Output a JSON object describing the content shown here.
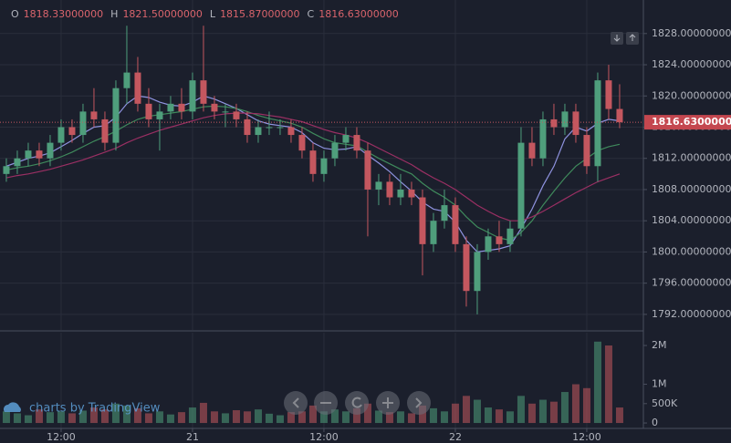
{
  "chart_data": {
    "type": "candlestick",
    "legend_header": [
      {
        "label": "O",
        "value": "1818.33000000"
      },
      {
        "label": "H",
        "value": "1821.50000000"
      },
      {
        "label": "L",
        "value": "1815.87000000"
      },
      {
        "label": "C",
        "value": "1816.63000000"
      }
    ],
    "last_price_label": "1816.63000000",
    "watermark": "charts by TradingView",
    "x": [
      7,
      8,
      9,
      10,
      11,
      12,
      13,
      14,
      15,
      16,
      17,
      18,
      19,
      20,
      21,
      22,
      23,
      24,
      25,
      26,
      27,
      28,
      29,
      30,
      31,
      32,
      33,
      34,
      35,
      36,
      37,
      38,
      39,
      40,
      41,
      42,
      43,
      44,
      45,
      46,
      47,
      48,
      49,
      50,
      51,
      52,
      53,
      54,
      55,
      56,
      57,
      58,
      59,
      60,
      61,
      62,
      63
    ],
    "open": [
      1810,
      1811,
      1812,
      1813,
      1812,
      1814,
      1816,
      1815,
      1818,
      1817,
      1814,
      1821,
      1823,
      1819,
      1817,
      1818,
      1819,
      1818,
      1822,
      1819,
      1818,
      1818,
      1817,
      1815,
      1816,
      1816,
      1816,
      1815,
      1813,
      1810,
      1812,
      1814,
      1815,
      1813,
      1808,
      1809,
      1807,
      1808,
      1807,
      1801,
      1804,
      1806,
      1801,
      1795,
      1800,
      1802,
      1801,
      1803,
      1814,
      1812,
      1817,
      1816,
      1818,
      1815,
      1811,
      1822,
      1818.33
    ],
    "high": [
      1812,
      1813,
      1814,
      1814,
      1815,
      1817,
      1817,
      1819,
      1821,
      1818,
      1822,
      1829,
      1825,
      1821,
      1819,
      1820,
      1821,
      1823,
      1829,
      1820,
      1819,
      1819,
      1818,
      1817,
      1818,
      1817,
      1817,
      1816,
      1814,
      1813,
      1815,
      1816,
      1816,
      1814,
      1810,
      1810,
      1810,
      1809,
      1808,
      1805,
      1808,
      1807,
      1802,
      1801,
      1803,
      1804,
      1804,
      1816,
      1816,
      1818,
      1819,
      1819,
      1819,
      1816,
      1823,
      1824,
      1821.5
    ],
    "low": [
      1809,
      1810,
      1811,
      1811,
      1811,
      1813,
      1814,
      1814,
      1816,
      1813,
      1813,
      1819,
      1818,
      1816,
      1813,
      1817,
      1817,
      1817,
      1818,
      1817,
      1816,
      1816,
      1814,
      1814,
      1815,
      1815,
      1814,
      1812,
      1809,
      1809,
      1811,
      1813,
      1812,
      1802,
      1806,
      1806,
      1806,
      1806,
      1797,
      1800,
      1803,
      1800,
      1793,
      1792,
      1799,
      1800,
      1800,
      1802,
      1811,
      1811,
      1815,
      1815,
      1814,
      1810,
      1809,
      1817,
      1815.87
    ],
    "close": [
      1811,
      1812,
      1813,
      1812,
      1814,
      1816,
      1815,
      1818,
      1817,
      1814,
      1821,
      1823,
      1819,
      1817,
      1818,
      1819,
      1818,
      1822,
      1819,
      1818,
      1818,
      1817,
      1815,
      1816,
      1816,
      1816,
      1815,
      1813,
      1810,
      1812,
      1814,
      1815,
      1813,
      1808,
      1809,
      1807,
      1808,
      1807,
      1801,
      1804,
      1806,
      1801,
      1795,
      1800,
      1802,
      1801,
      1803,
      1814,
      1812,
      1817,
      1816,
      1818,
      1815,
      1811,
      1822,
      1818.33,
      1816.63
    ],
    "volume": [
      300000,
      250000,
      200000,
      350000,
      280000,
      300000,
      250000,
      320000,
      400000,
      350000,
      500000,
      450000,
      380000,
      250000,
      300000,
      220000,
      280000,
      400000,
      520000,
      300000,
      250000,
      330000,
      300000,
      350000,
      240000,
      200000,
      280000,
      300000,
      450000,
      300000,
      350000,
      300000,
      380000,
      500000,
      320000,
      280000,
      300000,
      250000,
      450000,
      380000,
      300000,
      500000,
      700000,
      600000,
      400000,
      350000,
      300000,
      700000,
      500000,
      600000,
      550000,
      800000,
      1000000,
      900000,
      2100000,
      2000000,
      400000
    ],
    "up_color": "#4f9e7c",
    "down_color": "#c4575f",
    "series": [
      {
        "color": "#8f93e0",
        "values": [
          1811,
          1811.5,
          1812,
          1812.3,
          1812.7,
          1813.5,
          1814.3,
          1815.2,
          1816,
          1816.2,
          1817.3,
          1819,
          1820,
          1819.8,
          1819.2,
          1818.8,
          1818.7,
          1819.2,
          1820,
          1819.6,
          1819,
          1818.4,
          1817.6,
          1816.8,
          1816.4,
          1816.2,
          1816,
          1815.3,
          1814,
          1813.3,
          1813.1,
          1813.2,
          1813.5,
          1812.4,
          1811.4,
          1810.3,
          1809,
          1807.8,
          1806.4,
          1805.5,
          1805.2,
          1803.8,
          1801.5,
          1800,
          1800.2,
          1800.4,
          1800.8,
          1803,
          1805.5,
          1808.5,
          1811,
          1814.5,
          1816,
          1815.5,
          1816.5,
          1817,
          1816.8
        ]
      },
      {
        "color": "#3f8a5c",
        "values": [
          1810.5,
          1810.8,
          1811,
          1811.3,
          1811.7,
          1812.2,
          1812.8,
          1813.5,
          1814.2,
          1814.8,
          1815.5,
          1816.3,
          1817,
          1817.4,
          1817.6,
          1817.8,
          1818,
          1818.3,
          1818.6,
          1818.7,
          1818.6,
          1818.4,
          1818,
          1817.5,
          1817.1,
          1816.8,
          1816.5,
          1816,
          1815.2,
          1814.5,
          1814,
          1813.8,
          1813.6,
          1812.8,
          1812,
          1811.3,
          1810.6,
          1810,
          1808.8,
          1807.8,
          1807,
          1806,
          1804.5,
          1803.2,
          1802.5,
          1801.8,
          1801.5,
          1802.5,
          1804,
          1806,
          1807.8,
          1809.5,
          1811,
          1812,
          1813,
          1813.5,
          1813.8
        ]
      },
      {
        "color": "#9a2f63",
        "values": [
          1809.5,
          1809.8,
          1810,
          1810.3,
          1810.6,
          1811,
          1811.4,
          1811.8,
          1812.3,
          1812.8,
          1813.3,
          1814,
          1814.6,
          1815.1,
          1815.6,
          1816,
          1816.4,
          1816.8,
          1817.2,
          1817.5,
          1817.7,
          1817.8,
          1817.8,
          1817.7,
          1817.5,
          1817.3,
          1817,
          1816.7,
          1816.2,
          1815.7,
          1815.3,
          1815,
          1814.6,
          1814,
          1813.3,
          1812.6,
          1811.9,
          1811.2,
          1810.3,
          1809.5,
          1808.8,
          1808,
          1807,
          1806,
          1805.2,
          1804.5,
          1804,
          1804,
          1804.5,
          1805.2,
          1806,
          1806.8,
          1807.6,
          1808.3,
          1809,
          1809.5,
          1810
        ]
      }
    ],
    "xlim": [
      6.42,
      65.17
    ],
    "xticks": [
      {
        "value": 12,
        "label": "12:00"
      },
      {
        "value": 24,
        "label": "21"
      },
      {
        "value": 36,
        "label": "12:00"
      },
      {
        "value": 48,
        "label": "22"
      },
      {
        "value": 60,
        "label": "12:00"
      }
    ],
    "ylim": [
      1790,
      1832.3
    ],
    "yticks": [
      {
        "value": 1792,
        "label": "1792.00000000"
      },
      {
        "value": 1796,
        "label": "1796.00000000"
      },
      {
        "value": 1800,
        "label": "1800.00000000"
      },
      {
        "value": 1804,
        "label": "1804.00000000"
      },
      {
        "value": 1808,
        "label": "1808.00000000"
      },
      {
        "value": 1812,
        "label": "1812.00000000"
      },
      {
        "value": 1816,
        "label": "1816.00000000"
      },
      {
        "value": 1820,
        "label": "1820.00000000"
      },
      {
        "value": 1824,
        "label": "1824.00000000"
      },
      {
        "value": 1828,
        "label": "1828.00000000"
      }
    ],
    "volume_ylim": [
      -140000,
      2330000
    ],
    "volume_yticks": [
      0,
      {
        "value": 500000,
        "label": "500K"
      },
      {
        "value": 1000000,
        "label": "1M"
      },
      {
        "value": 2000000,
        "label": "2M"
      }
    ],
    "grid": true
  }
}
